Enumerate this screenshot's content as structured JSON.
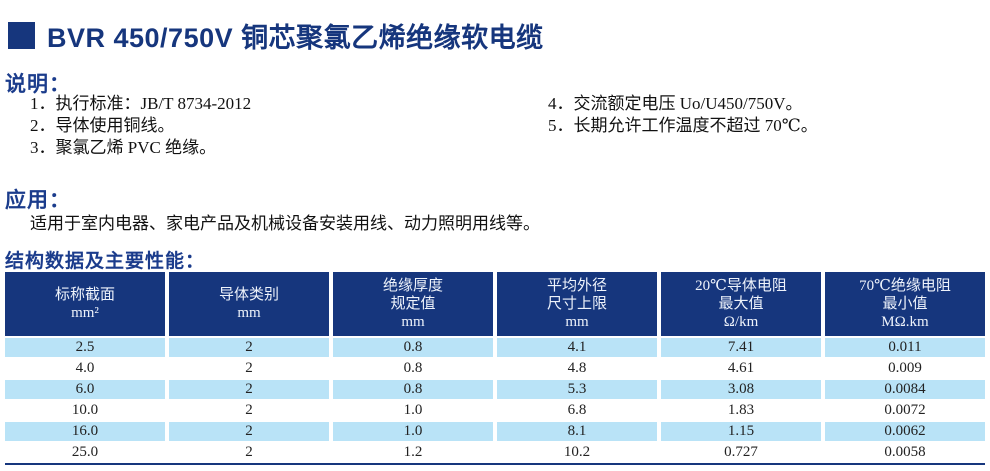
{
  "page": {
    "title": "BVR 450/750V 铜芯聚氯乙烯绝缘软电缆"
  },
  "colors": {
    "navy": "#16367d",
    "heading_navy": "#1b3c8c",
    "stripe_blue": "#b9e3f7"
  },
  "notes": {
    "heading": "说明：",
    "items_left": [
      "1．执行标准：JB/T 8734-2012",
      "2．导体使用铜线。",
      "3．聚氯乙烯 PVC 绝缘。"
    ],
    "items_right": [
      "4．交流额定电压 Uo/U450/750V。",
      "5．长期允许工作温度不超过 70℃。"
    ]
  },
  "application": {
    "heading": "应用：",
    "text": "适用于室内电器、家电产品及机械设备安装用线、动力照明用线等。"
  },
  "structure_section": {
    "heading": "结构数据及主要性能："
  },
  "table": {
    "headers": [
      "标称截面\nmm²",
      "导体类别\nmm",
      "绝缘厚度\n规定值\nmm",
      "平均外径\n尺寸上限\nmm",
      "20℃导体电阻\n最大值\nΩ/km",
      "70℃绝缘电阻\n最小值\nMΩ.km"
    ],
    "rows": [
      [
        "2.5",
        "2",
        "0.8",
        "4.1",
        "7.41",
        "0.011"
      ],
      [
        "4.0",
        "2",
        "0.8",
        "4.8",
        "4.61",
        "0.009"
      ],
      [
        "6.0",
        "2",
        "0.8",
        "5.3",
        "3.08",
        "0.0084"
      ],
      [
        "10.0",
        "2",
        "1.0",
        "6.8",
        "1.83",
        "0.0072"
      ],
      [
        "16.0",
        "2",
        "1.0",
        "8.1",
        "1.15",
        "0.0062"
      ],
      [
        "25.0",
        "2",
        "1.2",
        "10.2",
        "0.727",
        "0.0058"
      ]
    ]
  },
  "chart_data": {
    "type": "table",
    "title": "结构数据及主要性能",
    "columns": [
      "标称截面 mm²",
      "导体类别 mm",
      "绝缘厚度规定值 mm",
      "平均外径尺寸上限 mm",
      "20℃导体电阻最大值 Ω/km",
      "70℃绝缘电阻最小值 MΩ.km"
    ],
    "rows": [
      [
        2.5,
        2,
        0.8,
        4.1,
        7.41,
        0.011
      ],
      [
        4.0,
        2,
        0.8,
        4.8,
        4.61,
        0.009
      ],
      [
        6.0,
        2,
        0.8,
        5.3,
        3.08,
        0.0084
      ],
      [
        10.0,
        2,
        1.0,
        6.8,
        1.83,
        0.0072
      ],
      [
        16.0,
        2,
        1.0,
        8.1,
        1.15,
        0.0062
      ],
      [
        25.0,
        2,
        1.2,
        10.2,
        0.727,
        0.0058
      ]
    ]
  }
}
